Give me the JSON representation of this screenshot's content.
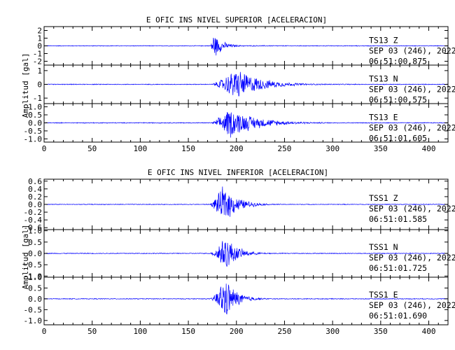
{
  "figure": {
    "top_title": "E OFIC INS NIVEL SUPERIOR [ACELERACION]",
    "bottom_title": "E OFIC INS NIVEL INFERIOR [ACELERACION]",
    "top_ylabel": "Amplitud [gal]",
    "bottom_ylabel": "Amplitud [gal]"
  },
  "chart_data": [
    {
      "type": "line",
      "title": "E OFIC INS NIVEL SUPERIOR [ACELERACION]",
      "ylabel": "Amplitud [gal]",
      "xlim": [
        0,
        420
      ],
      "xticks": [
        0,
        50,
        100,
        150,
        200,
        250,
        300,
        350,
        400
      ],
      "trace_color": "#0000ff",
      "traces": [
        {
          "station": "TS13",
          "component": "Z",
          "date": "SEP 03 (246), 2022",
          "time": "06:51:00.875",
          "ylim": [
            -2.5,
            2.5
          ],
          "yticks": [
            2,
            1,
            0,
            -1,
            -2
          ],
          "ytick_labels": [
            "2",
            "1",
            "0",
            "-1",
            "-2"
          ],
          "envelope": {
            "noise": 0.05,
            "onset": 173,
            "peak_time": 176,
            "peak": 1.95,
            "decay": 9,
            "coda": 0.03,
            "coda_end": 290
          }
        },
        {
          "station": "TS13",
          "component": "N",
          "date": "SEP 03 (246), 2022",
          "time": "06:51:00.575",
          "ylim": [
            -1.4,
            1.4
          ],
          "yticks": [
            1,
            0,
            -1
          ],
          "ytick_labels": [
            "1",
            "0",
            "-1"
          ],
          "envelope": {
            "noise": 0.03,
            "onset": 174,
            "peak_time": 200,
            "peak": 1.3,
            "decay": 25,
            "coda": 0.06,
            "coda_end": 330
          }
        },
        {
          "station": "TS13",
          "component": "E",
          "date": "SEP 03 (246), 2022",
          "time": "06:51:01.605",
          "ylim": [
            -1.2,
            1.2
          ],
          "yticks": [
            1.0,
            0.5,
            0.0,
            -0.5,
            -1.0
          ],
          "ytick_labels": [
            "1.0",
            "0.5",
            "0.0",
            "-0.5",
            "-1.0"
          ],
          "envelope": {
            "noise": 0.03,
            "onset": 174,
            "peak_time": 193,
            "peak": 1.05,
            "decay": 28,
            "coda": 0.1,
            "coda_end": 300
          }
        }
      ]
    },
    {
      "type": "line",
      "title": "E OFIC INS NIVEL INFERIOR [ACELERACION]",
      "ylabel": "Amplitud [gal]",
      "xlim": [
        0,
        420
      ],
      "xticks": [
        0,
        50,
        100,
        150,
        200,
        250,
        300,
        350,
        400
      ],
      "trace_color": "#0000ff",
      "traces": [
        {
          "station": "TSS1",
          "component": "Z",
          "date": "SEP 03 (246), 2022",
          "time": "06:51:01.585",
          "ylim": [
            -0.65,
            0.65
          ],
          "yticks": [
            0.6,
            0.4,
            0.2,
            0.0,
            -0.2,
            -0.4,
            -0.6
          ],
          "ytick_labels": [
            "0.6",
            "0.4",
            "0.2",
            "0.0",
            "-0.2",
            "-0.4",
            "-0.6"
          ],
          "envelope": {
            "noise": 0.01,
            "onset": 172,
            "peak_time": 187,
            "peak": 0.55,
            "decay": 14,
            "coda": 0.02,
            "coda_end": 250
          }
        },
        {
          "station": "TSS1",
          "component": "N",
          "date": "SEP 03 (246), 2022",
          "time": "06:51:01.725",
          "ylim": [
            -1.05,
            1.05
          ],
          "yticks": [
            1.0,
            0.5,
            0.0,
            -0.5,
            -1.0
          ],
          "ytick_labels": [
            "1.0",
            "0.5",
            "0.0",
            "-0.5",
            "-1.0"
          ],
          "envelope": {
            "noise": 0.02,
            "onset": 173,
            "peak_time": 188,
            "peak": 0.95,
            "decay": 12,
            "coda": 0.03,
            "coda_end": 250
          }
        },
        {
          "station": "TSS1",
          "component": "E",
          "date": "SEP 03 (246), 2022",
          "time": "06:51:01.690",
          "ylim": [
            -1.2,
            1.0
          ],
          "yticks": [
            1.0,
            0.5,
            0.0,
            -0.5,
            -1.0
          ],
          "ytick_labels": [
            "1.0",
            "0.5",
            "0.0",
            "-0.5",
            "-1.0"
          ],
          "envelope": {
            "noise": 0.02,
            "onset": 173,
            "peak_time": 188,
            "peak": 1.1,
            "decay": 12,
            "coda": 0.02,
            "coda_end": 240
          }
        }
      ]
    }
  ]
}
